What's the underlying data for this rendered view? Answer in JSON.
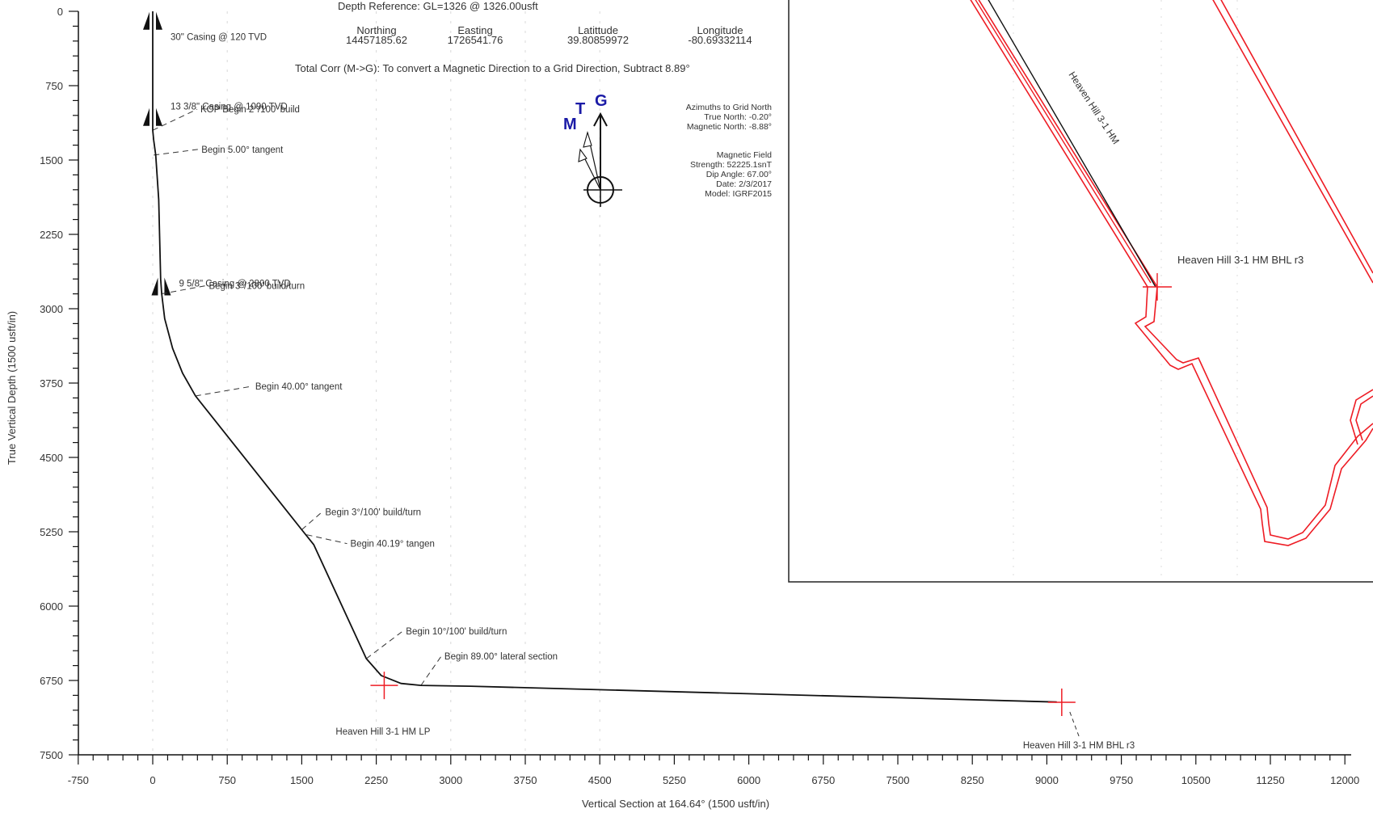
{
  "header": {
    "depth_reference": "Depth Reference:   GL=1326 @ 1326.00usft",
    "northing_label": "Northing",
    "northing_value": "14457185.62",
    "easting_label": "Easting",
    "easting_value": "1726541.76",
    "latitude_label": "Latittude",
    "latitude_value": "39.80859972",
    "longitude_label": "Longitude",
    "longitude_value": "-80.69332114",
    "total_corr": "Total Corr (M->G):   To convert a Magnetic Direction to a Grid Direction, Subtract 8.89°"
  },
  "north_arrow": {
    "m": "M",
    "t": "T",
    "g": "G"
  },
  "azimuths": {
    "title": "Azimuths to Grid North",
    "true_north": "True North: -0.20°",
    "magnetic_north": "Magnetic North: -8.88°"
  },
  "magnetic_field": {
    "title": "Magnetic Field",
    "strength": "Strength: 52225.1snT",
    "dip": "Dip Angle: 67.00°",
    "date": "Date: 2/3/2017",
    "model": "Model: IGRF2015"
  },
  "chart_data": {
    "type": "line",
    "title": "",
    "xlabel": "Vertical Section at 164.64° (1500 usft/in)",
    "ylabel": "True Vertical Depth (1500 usft/in)",
    "xlim": [
      -750,
      12000
    ],
    "ylim": [
      7500,
      0
    ],
    "x_ticks": [
      -750,
      0,
      750,
      1500,
      2250,
      3000,
      3750,
      4500,
      5250,
      6000,
      6750,
      7500,
      8250,
      9000,
      9750,
      10500,
      11250,
      12000
    ],
    "y_ticks": [
      0,
      750,
      1500,
      2250,
      3000,
      3750,
      4500,
      5250,
      6000,
      6750,
      7500
    ],
    "series": [
      {
        "points": [
          [
            0,
            0
          ],
          [
            0,
            1200
          ],
          [
            10,
            1300
          ],
          [
            30,
            1450
          ],
          [
            60,
            1900
          ],
          [
            70,
            2300
          ],
          [
            80,
            2700
          ],
          [
            90,
            2850
          ],
          [
            120,
            3100
          ],
          [
            200,
            3400
          ],
          [
            300,
            3650
          ],
          [
            430,
            3880
          ],
          [
            1500,
            5230
          ],
          [
            1620,
            5380
          ],
          [
            2150,
            6530
          ],
          [
            2300,
            6700
          ],
          [
            2500,
            6780
          ],
          [
            2700,
            6800
          ],
          [
            3200,
            6808
          ],
          [
            9100,
            6968
          ]
        ]
      }
    ],
    "casings": [
      {
        "label": "30\" Casing @ 120 TVD",
        "tvd": 120
      },
      {
        "label": "13 3/8\" Casing @ 1090 TVD",
        "tvd": 1090
      },
      {
        "label": "9 5/8\" Casing @ 2800 TVD",
        "tvd": 2800
      }
    ],
    "annotations": [
      {
        "label": "KOP Begin 2°/100' build",
        "vs": 0,
        "tvd": 1200
      },
      {
        "label": "Begin 5.00° tangent",
        "vs": 10,
        "tvd": 1450
      },
      {
        "label": "Begin 3°/100' build/turn",
        "vs": 85,
        "tvd": 2850
      },
      {
        "label": "Begin 40.00° tangent",
        "vs": 430,
        "tvd": 3880
      },
      {
        "label": "Begin 3°/100' build/turn",
        "vs": 1500,
        "tvd": 5230
      },
      {
        "label": "Begin 40.19° tangen",
        "vs": 1550,
        "tvd": 5280
      },
      {
        "label": "Begin 10°/100' build/turn",
        "vs": 2150,
        "tvd": 6530
      },
      {
        "label": "Begin 89.00° lateral section",
        "vs": 2700,
        "tvd": 6800
      }
    ],
    "targets": [
      {
        "label": "Heaven Hill 3-1 HM LP",
        "vs": 2330,
        "tvd": 6800
      },
      {
        "label": "Heaven Hill 3-1 HM BHL r3",
        "vs": 9150,
        "tvd": 6970
      }
    ]
  },
  "plan_view": {
    "well_label": "Heaven Hill 3-1 HM",
    "bhl_label": "Heaven Hill 3-1 HM BHL r3"
  },
  "colors": {
    "well_path": "#111111",
    "target": "#ee1c24",
    "lease": "#ee1c24",
    "north_arrow": "#1a1aa6"
  }
}
